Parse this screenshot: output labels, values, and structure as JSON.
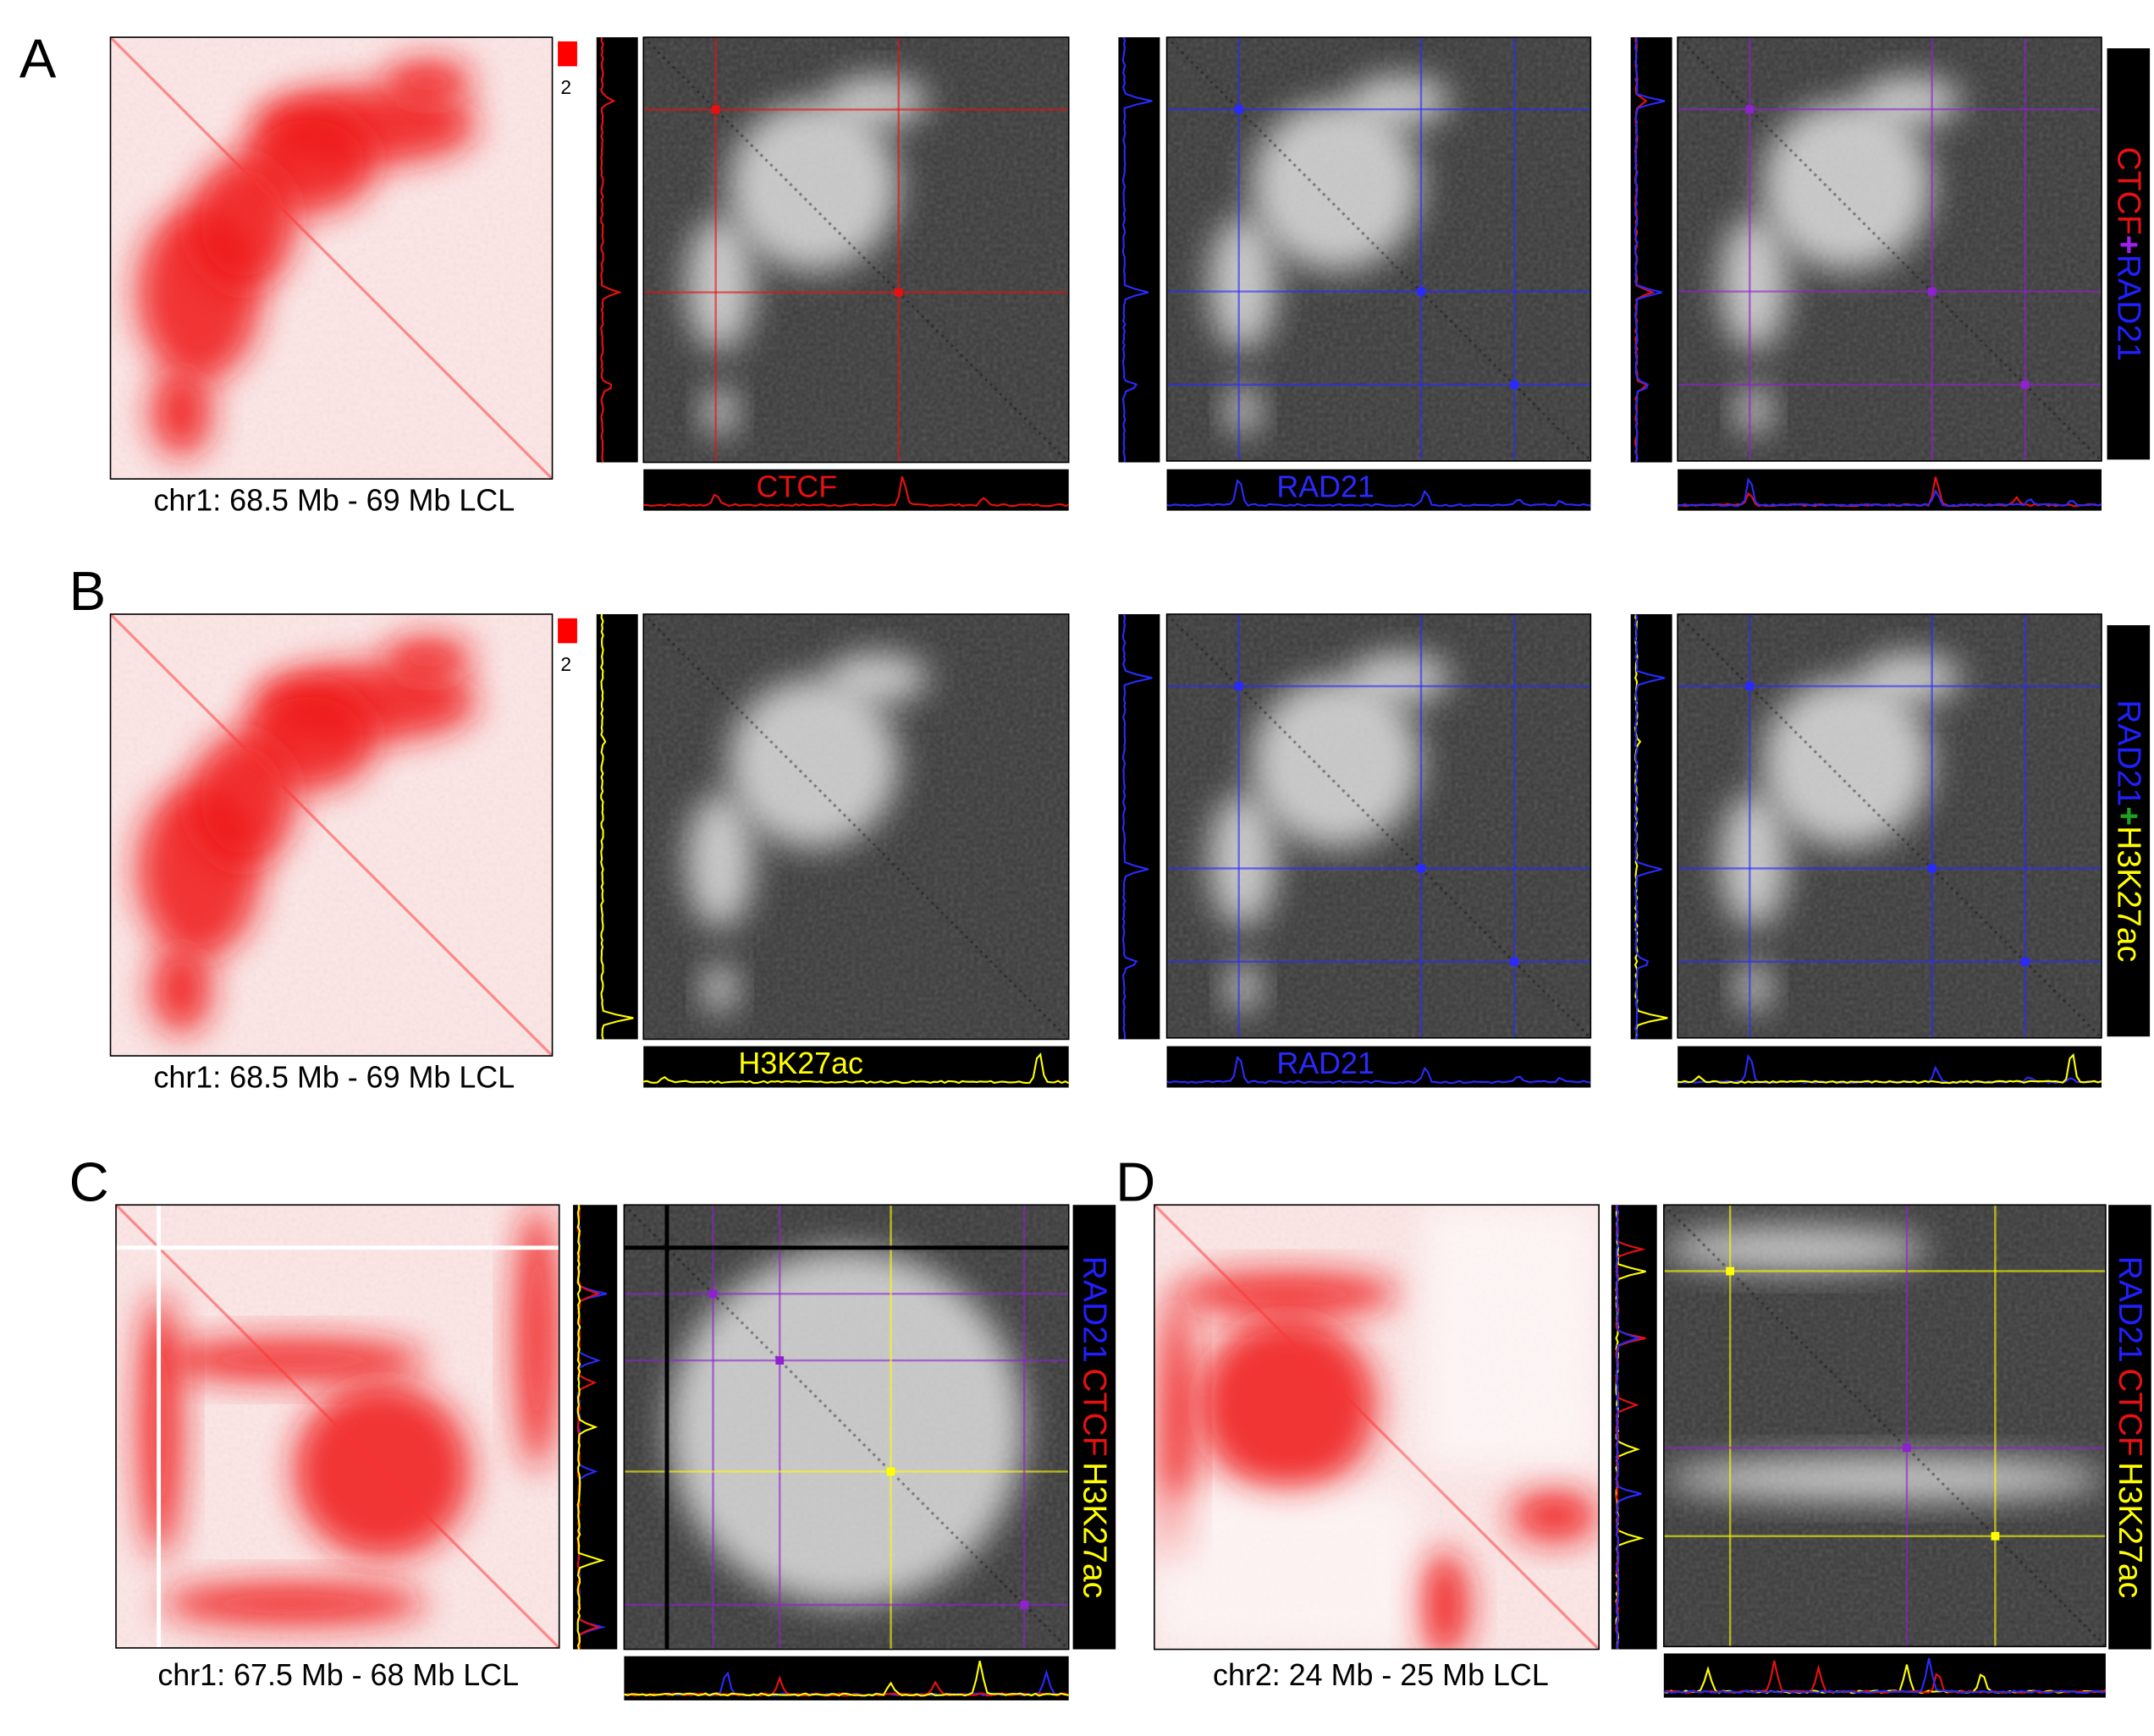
{
  "panels": [
    {
      "label": "A",
      "caption": "chr1: 68.5 Mb - 69 Mb LCL",
      "scale_label": "2",
      "tracks": [
        "CTCF",
        "RAD21"
      ],
      "legend": [
        "CTCF",
        "+",
        "RAD21"
      ]
    },
    {
      "label": "B",
      "caption": "chr1: 68.5 Mb - 69 Mb LCL",
      "scale_label": "2",
      "tracks": [
        "H3K27ac",
        "RAD21"
      ],
      "legend": [
        "RAD21",
        "+",
        "H3K27ac"
      ]
    },
    {
      "label": "C",
      "caption": "chr1: 67.5 Mb - 68 Mb LCL",
      "legend": [
        "RAD21",
        "CTCF",
        "H3K27ac"
      ]
    },
    {
      "label": "D",
      "caption": "chr2: 24 Mb - 25 Mb LCL",
      "legend": [
        "RAD21",
        "CTCF",
        "H3K27ac"
      ]
    }
  ]
}
